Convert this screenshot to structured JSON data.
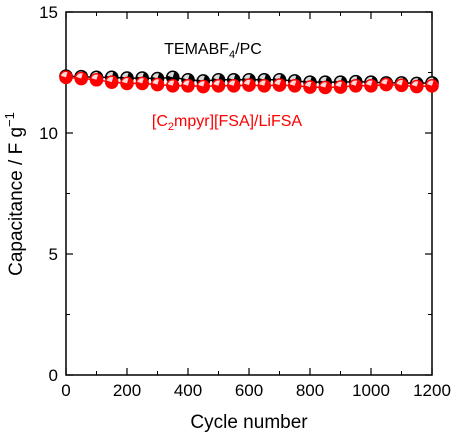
{
  "chart_data": {
    "type": "scatter",
    "title": "",
    "xlabel": "Cycle number",
    "ylabel": "Capacitance / F g",
    "ylabel_unit_superscript": "−1",
    "xlim": [
      0,
      1200
    ],
    "ylim": [
      0,
      15
    ],
    "x_ticks": [
      "0",
      "200",
      "400",
      "600",
      "800",
      "1000",
      "1200"
    ],
    "y_ticks": [
      "0",
      "5",
      "10",
      "15"
    ],
    "grid": false,
    "legend": "none",
    "annotations": {
      "black": {
        "pre": "TEMABF",
        "sub": "4",
        "post": "/PC"
      },
      "red": {
        "pre": "[C",
        "sub": "2",
        "post": "mpyr][FSA]/LiFSA"
      }
    },
    "series": [
      {
        "color": "#000000",
        "x": [
          0,
          50,
          100,
          150,
          200,
          250,
          300,
          350,
          400,
          450,
          500,
          550,
          600,
          650,
          700,
          750,
          800,
          850,
          900,
          950,
          1000,
          1050,
          1100,
          1150,
          1200
        ],
        "y": [
          12.35,
          12.33,
          12.3,
          12.3,
          12.27,
          12.27,
          12.25,
          12.3,
          12.2,
          12.15,
          12.2,
          12.2,
          12.2,
          12.2,
          12.2,
          12.15,
          12.1,
          12.1,
          12.1,
          12.12,
          12.1,
          12.07,
          12.07,
          12.05,
          12.07
        ]
      },
      {
        "color": "#ff0000",
        "x": [
          0,
          50,
          100,
          150,
          200,
          250,
          300,
          350,
          400,
          450,
          500,
          550,
          600,
          650,
          700,
          750,
          800,
          850,
          900,
          950,
          1000,
          1050,
          1100,
          1150,
          1200
        ],
        "y": [
          12.3,
          12.25,
          12.2,
          12.1,
          12.05,
          12.05,
          12.0,
          11.95,
          11.95,
          11.92,
          11.95,
          11.95,
          11.98,
          11.95,
          11.98,
          11.95,
          11.9,
          11.88,
          11.9,
          11.95,
          11.95,
          12.0,
          11.97,
          11.92,
          11.95
        ]
      }
    ]
  }
}
